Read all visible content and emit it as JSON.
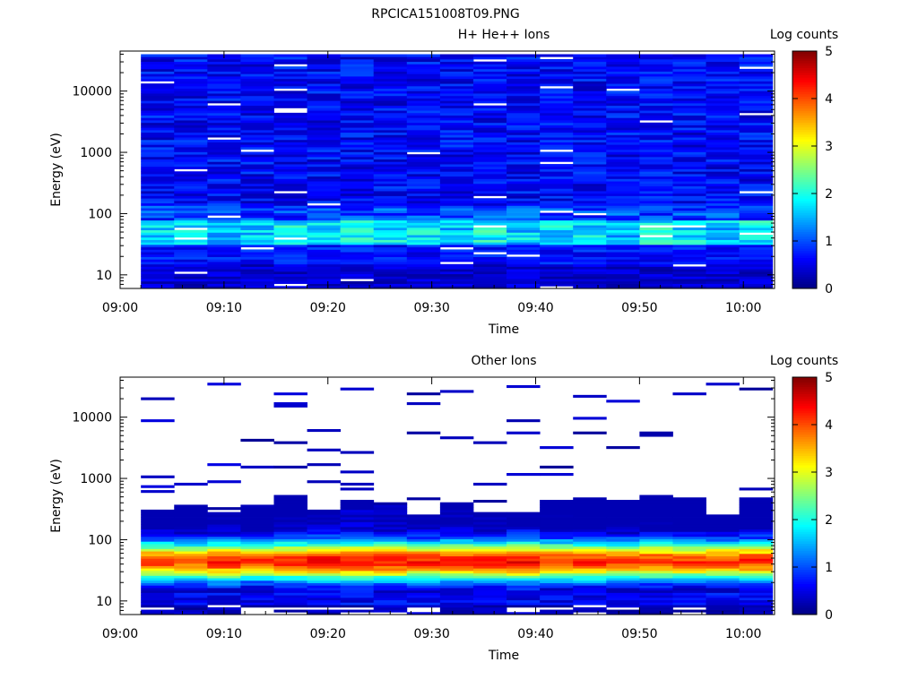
{
  "file_title": "RPCICA151008T09.PNG",
  "chart_data": [
    {
      "type": "heatmap",
      "title": "H+ He++ Ions",
      "xlabel": "Time",
      "ylabel": "Energy (eV)",
      "y_scale": "log",
      "ylim": [
        6,
        45000
      ],
      "x_ticks": [
        "09:00",
        "09:10",
        "09:20",
        "09:30",
        "09:40",
        "09:50",
        "10:00"
      ],
      "x_tick_minutes": [
        0,
        10,
        20,
        30,
        40,
        50,
        60
      ],
      "xlim_minutes": [
        0,
        63
      ],
      "y_ticks": [
        "10",
        "100",
        "1000",
        "10000"
      ],
      "y_tick_values": [
        10,
        100,
        1000,
        10000
      ],
      "time_bins_minutes": [
        2,
        5.2,
        8.4,
        11.6,
        14.8,
        18,
        21.2,
        24.4,
        27.6,
        30.8,
        34,
        37.2,
        40.4,
        43.6,
        46.8,
        50,
        53.2,
        56.4,
        59.6,
        62.8
      ],
      "energy_range_ev": [
        6,
        40000
      ],
      "energy_bins": 96,
      "profile": "broad_low",
      "seed": 7,
      "colorbar": {
        "label": "Log counts",
        "ticks": [
          "0",
          "1",
          "2",
          "3",
          "4",
          "5"
        ],
        "range": [
          0,
          5
        ],
        "colormap": "jet"
      }
    },
    {
      "type": "heatmap",
      "title": "Other Ions",
      "xlabel": "Time",
      "ylabel": "Energy (eV)",
      "y_scale": "log",
      "ylim": [
        6,
        45000
      ],
      "x_ticks": [
        "09:00",
        "09:10",
        "09:20",
        "09:30",
        "09:40",
        "09:50",
        "10:00"
      ],
      "x_tick_minutes": [
        0,
        10,
        20,
        30,
        40,
        50,
        60
      ],
      "xlim_minutes": [
        0,
        63
      ],
      "y_ticks": [
        "10",
        "100",
        "1000",
        "10000"
      ],
      "y_tick_values": [
        10,
        100,
        1000,
        10000
      ],
      "time_bins_minutes": [
        2,
        5.2,
        8.4,
        11.6,
        14.8,
        18,
        21.2,
        24.4,
        27.6,
        30.8,
        34,
        37.2,
        40.4,
        43.6,
        46.8,
        50,
        53.2,
        56.4,
        59.6,
        62.8
      ],
      "energy_range_ev": [
        6,
        40000
      ],
      "energy_bins": 96,
      "profile": "peaked",
      "peak_energy_ev": 45,
      "peak_log_counts": 4.2,
      "seed": 23,
      "colorbar": {
        "label": "Log counts",
        "ticks": [
          "0",
          "1",
          "2",
          "3",
          "4",
          "5"
        ],
        "range": [
          0,
          5
        ],
        "colormap": "jet"
      }
    }
  ]
}
